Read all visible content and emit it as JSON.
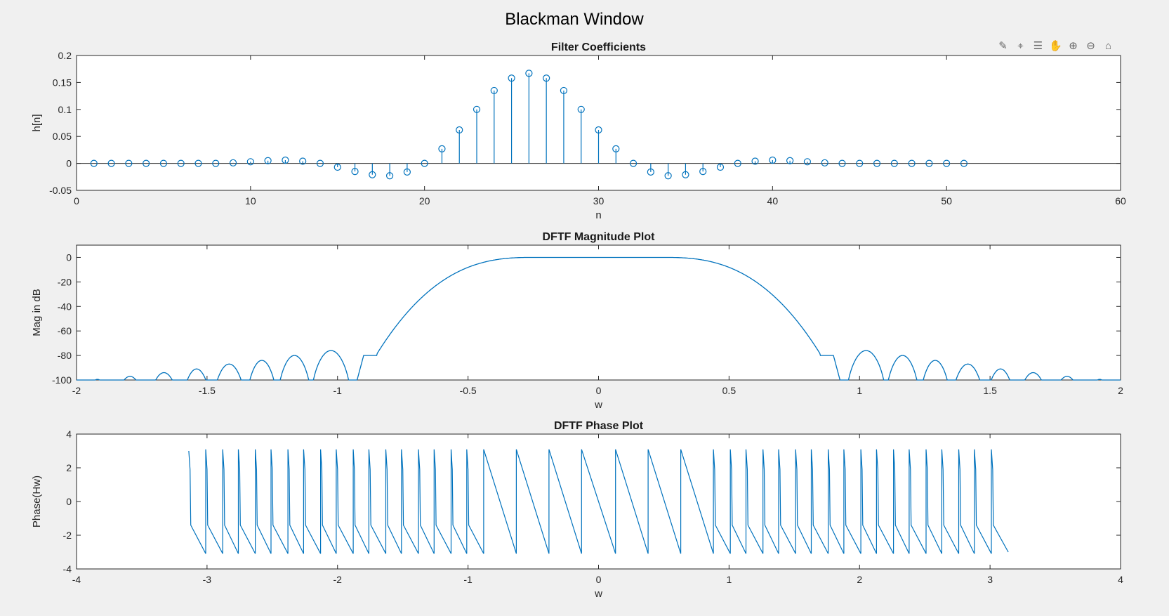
{
  "figure": {
    "title": "Blackman Window",
    "line_color": "#0072bd",
    "toolbar": [
      {
        "name": "brush-icon",
        "glyph": "✎"
      },
      {
        "name": "data-cursor-icon",
        "glyph": "⌖"
      },
      {
        "name": "legend-icon",
        "glyph": "☰"
      },
      {
        "name": "pan-hand-icon",
        "glyph": "✋"
      },
      {
        "name": "zoom-in-icon",
        "glyph": "⊕"
      },
      {
        "name": "zoom-out-icon",
        "glyph": "⊖"
      },
      {
        "name": "home-icon",
        "glyph": "⌂"
      }
    ]
  },
  "chart_data": [
    {
      "type": "stem",
      "title": "Filter Coefficients",
      "xlabel": "n",
      "ylabel": "h[n]",
      "xlim": [
        0,
        60
      ],
      "ylim": [
        -0.05,
        0.2
      ],
      "xticks": [
        0,
        10,
        20,
        30,
        40,
        50,
        60
      ],
      "yticks": [
        -0.05,
        0,
        0.05,
        0.1,
        0.15,
        0.2
      ],
      "yticklabels": [
        "-0.05",
        "0",
        "0.05",
        "0.1",
        "0.15",
        "0.2"
      ],
      "x": [
        1,
        2,
        3,
        4,
        5,
        6,
        7,
        8,
        9,
        10,
        11,
        12,
        13,
        14,
        15,
        16,
        17,
        18,
        19,
        20,
        21,
        22,
        23,
        24,
        25,
        26,
        27,
        28,
        29,
        30,
        31,
        32,
        33,
        34,
        35,
        36,
        37,
        38,
        39,
        40,
        41,
        42,
        43,
        44,
        45,
        46,
        47,
        48,
        49,
        50,
        51
      ],
      "values": [
        0,
        0,
        0,
        0,
        0,
        0,
        0,
        0,
        0.001,
        0.003,
        0.005,
        0.006,
        0.004,
        0,
        -0.007,
        -0.015,
        -0.021,
        -0.023,
        -0.016,
        0,
        0.027,
        0.062,
        0.1,
        0.135,
        0.158,
        0.167,
        0.158,
        0.135,
        0.1,
        0.062,
        0.027,
        0,
        -0.016,
        -0.023,
        -0.021,
        -0.015,
        -0.007,
        0,
        0.004,
        0.006,
        0.005,
        0.003,
        0.001,
        0,
        0,
        0,
        0,
        0,
        0,
        0,
        0
      ]
    },
    {
      "type": "line",
      "title": "DFTF Magnitude Plot",
      "xlabel": "w",
      "ylabel": "Mag in dB",
      "xlim": [
        -2,
        2
      ],
      "ylim": [
        -100,
        10
      ],
      "xticks": [
        -2,
        -1.5,
        -1,
        -0.5,
        0,
        0.5,
        1,
        1.5,
        2
      ],
      "yticks": [
        -100,
        -80,
        -60,
        -40,
        -20,
        0
      ],
      "passband": {
        "flat_edge": 0.25,
        "transition_end": 0.85,
        "floor_db": -79,
        "flat_end": 0.9
      },
      "sidelobes": [
        {
          "lo": 0.95,
          "hi": 1.1,
          "peak": -76
        },
        {
          "lo": 1.1,
          "hi": 1.23,
          "peak": -80
        },
        {
          "lo": 1.23,
          "hi": 1.35,
          "peak": -84
        },
        {
          "lo": 1.35,
          "hi": 1.48,
          "peak": -87
        },
        {
          "lo": 1.48,
          "hi": 1.6,
          "peak": -91
        },
        {
          "lo": 1.6,
          "hi": 1.73,
          "peak": -94
        },
        {
          "lo": 1.73,
          "hi": 1.86,
          "peak": -97
        },
        {
          "lo": 1.86,
          "hi": 1.98,
          "peak": -99.5
        }
      ]
    },
    {
      "type": "line",
      "title": "DFTF Phase Plot",
      "xlabel": "w",
      "ylabel": "Phase(Hw)",
      "xlim": [
        -4,
        4
      ],
      "ylim": [
        -4,
        4
      ],
      "xticks": [
        -4,
        -3,
        -2,
        -1,
        0,
        1,
        2,
        3,
        4
      ],
      "yticks": [
        -4,
        -2,
        0,
        2,
        4
      ],
      "wrap_points": [
        -3.01,
        -2.88,
        -2.76,
        -2.63,
        -2.51,
        -2.38,
        -2.26,
        -2.13,
        -2.01,
        -1.88,
        -1.76,
        -1.63,
        -1.51,
        -1.38,
        -1.26,
        -1.13,
        -1.01,
        -0.88,
        -0.63,
        -0.38,
        -0.13,
        0.13,
        0.38,
        0.63,
        0.88,
        1.01,
        1.13,
        1.26,
        1.38,
        1.51,
        1.63,
        1.76,
        1.88,
        2.01,
        2.13,
        2.26,
        2.38,
        2.51,
        2.63,
        2.76,
        2.88,
        3.01
      ],
      "w_range": [
        -3.14,
        3.14
      ]
    }
  ]
}
